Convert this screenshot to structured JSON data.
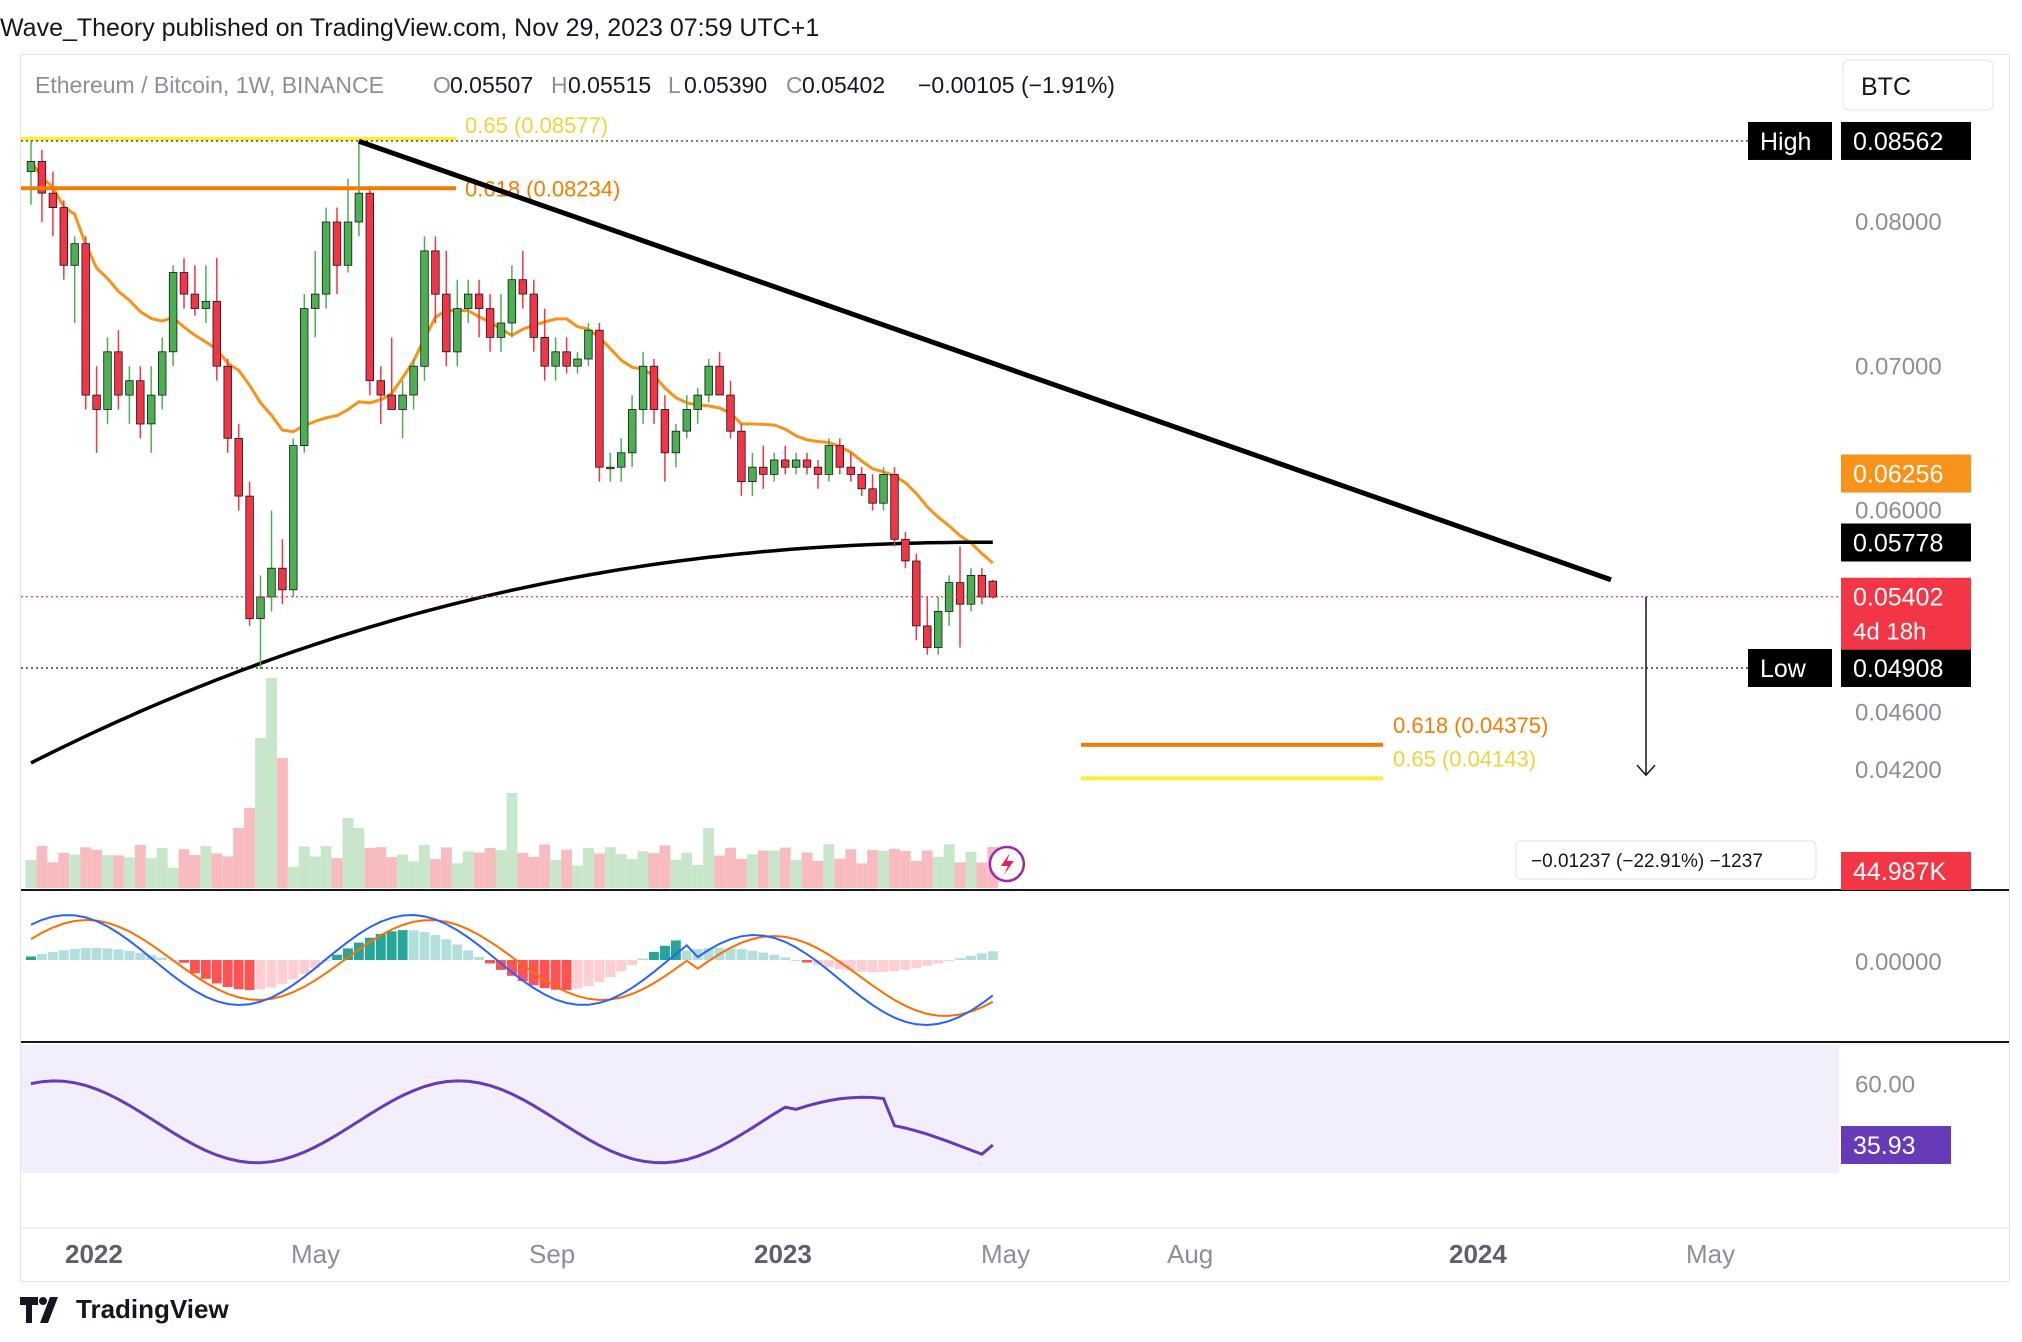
{
  "header": {
    "published": "Wave_Theory published on TradingView.com, Nov 29, 2023 07:59 UTC+1"
  },
  "legend": {
    "symbol": "Ethereum / Bitcoin, 1W, BINANCE",
    "o_label": "O",
    "o_value": "0.05507",
    "h_label": "H",
    "h_value": "0.05515",
    "l_label": "L",
    "l_value": "0.05390",
    "c_label": "C",
    "c_value": "0.05402",
    "change": "−0.00105 (−1.91%)"
  },
  "currency_button": "BTC",
  "price_scale": {
    "ticks": [
      "0.08000",
      "0.07000",
      "0.06000",
      "0.04600",
      "0.04200"
    ],
    "high_label": "High",
    "high_value": "0.08562",
    "low_label": "Low",
    "low_value": "0.04908",
    "ma50_value": "0.06256",
    "ma200_value": "0.05778",
    "last_value": "0.05402",
    "countdown": "4d 18h",
    "volume_value": "44.987K"
  },
  "fib_levels": {
    "top_065": "0.65 (0.08577)",
    "top_0618": "0.618 (0.08234)",
    "bottom_0618": "0.618 (0.04375)",
    "bottom_065": "0.65 (0.04143)"
  },
  "measure_label": "−0.01237 (−22.91%) −1237",
  "macd_scale": {
    "zero": "0.00000"
  },
  "rsi_scale": {
    "tick": "60.00",
    "value": "35.93"
  },
  "time_axis": [
    "2022",
    "May",
    "Sep",
    "2023",
    "May",
    "Aug",
    "2024",
    "May"
  ],
  "footer": {
    "brand": "TradingView"
  },
  "colors": {
    "up": "#4caf50",
    "down": "#f23645",
    "ma50": "#f7931a",
    "ma200": "#000000",
    "trendline": "#000000",
    "fib_gold": "#ffeb3b",
    "fib_orange": "#f57c00",
    "macd": "#2962ff",
    "signal": "#ff6d00",
    "rsi": "#673ab7",
    "rsi_bg": "#f3eefb"
  },
  "chart_data": {
    "type": "candlestick",
    "timeframe": "1W",
    "symbol": "ETHBTC",
    "candles_ohlc": [
      [
        0.0835,
        0.0856,
        0.0812,
        0.0842
      ],
      [
        0.0842,
        0.085,
        0.08,
        0.082
      ],
      [
        0.082,
        0.0835,
        0.079,
        0.081
      ],
      [
        0.081,
        0.0815,
        0.076,
        0.077
      ],
      [
        0.077,
        0.079,
        0.073,
        0.0785
      ],
      [
        0.0785,
        0.079,
        0.067,
        0.068
      ],
      [
        0.068,
        0.07,
        0.064,
        0.067
      ],
      [
        0.067,
        0.072,
        0.066,
        0.071
      ],
      [
        0.071,
        0.0725,
        0.067,
        0.068
      ],
      [
        0.068,
        0.07,
        0.066,
        0.069
      ],
      [
        0.069,
        0.07,
        0.065,
        0.066
      ],
      [
        0.066,
        0.07,
        0.064,
        0.068
      ],
      [
        0.068,
        0.072,
        0.067,
        0.071
      ],
      [
        0.071,
        0.077,
        0.07,
        0.0765
      ],
      [
        0.0765,
        0.0775,
        0.074,
        0.075
      ],
      [
        0.075,
        0.077,
        0.0735,
        0.074
      ],
      [
        0.074,
        0.077,
        0.073,
        0.0745
      ],
      [
        0.0745,
        0.0775,
        0.069,
        0.07
      ],
      [
        0.07,
        0.0705,
        0.064,
        0.065
      ],
      [
        0.065,
        0.066,
        0.06,
        0.061
      ],
      [
        0.061,
        0.062,
        0.052,
        0.0525
      ],
      [
        0.0525,
        0.0555,
        0.049,
        0.054
      ],
      [
        0.054,
        0.06,
        0.053,
        0.056
      ],
      [
        0.056,
        0.058,
        0.0535,
        0.0545
      ],
      [
        0.0545,
        0.065,
        0.054,
        0.0645
      ],
      [
        0.0645,
        0.075,
        0.064,
        0.074
      ],
      [
        0.074,
        0.078,
        0.072,
        0.075
      ],
      [
        0.075,
        0.081,
        0.074,
        0.08
      ],
      [
        0.08,
        0.081,
        0.075,
        0.077
      ],
      [
        0.077,
        0.083,
        0.0765,
        0.08
      ],
      [
        0.08,
        0.0856,
        0.079,
        0.082
      ],
      [
        0.082,
        0.0825,
        0.068,
        0.069
      ],
      [
        0.069,
        0.07,
        0.066,
        0.068
      ],
      [
        0.068,
        0.072,
        0.067,
        0.067
      ],
      [
        0.067,
        0.069,
        0.065,
        0.068
      ],
      [
        0.068,
        0.0705,
        0.067,
        0.07
      ],
      [
        0.07,
        0.079,
        0.069,
        0.078
      ],
      [
        0.078,
        0.079,
        0.073,
        0.075
      ],
      [
        0.075,
        0.078,
        0.07,
        0.071
      ],
      [
        0.071,
        0.076,
        0.07,
        0.074
      ],
      [
        0.074,
        0.076,
        0.073,
        0.075
      ],
      [
        0.075,
        0.076,
        0.072,
        0.074
      ],
      [
        0.074,
        0.075,
        0.071,
        0.072
      ],
      [
        0.072,
        0.075,
        0.071,
        0.073
      ],
      [
        0.073,
        0.077,
        0.072,
        0.076
      ],
      [
        0.076,
        0.078,
        0.074,
        0.075
      ],
      [
        0.075,
        0.076,
        0.071,
        0.072
      ],
      [
        0.072,
        0.074,
        0.069,
        0.07
      ],
      [
        0.07,
        0.072,
        0.069,
        0.071
      ],
      [
        0.071,
        0.072,
        0.0695,
        0.07
      ],
      [
        0.07,
        0.071,
        0.0695,
        0.0705
      ],
      [
        0.0705,
        0.073,
        0.07,
        0.0725
      ],
      [
        0.0725,
        0.073,
        0.062,
        0.063
      ],
      [
        0.063,
        0.064,
        0.062,
        0.063
      ],
      [
        0.063,
        0.065,
        0.062,
        0.064
      ],
      [
        0.064,
        0.068,
        0.063,
        0.067
      ],
      [
        0.067,
        0.071,
        0.066,
        0.07
      ],
      [
        0.07,
        0.0705,
        0.066,
        0.067
      ],
      [
        0.067,
        0.068,
        0.062,
        0.064
      ],
      [
        0.064,
        0.066,
        0.063,
        0.0655
      ],
      [
        0.0655,
        0.068,
        0.065,
        0.067
      ],
      [
        0.067,
        0.0685,
        0.066,
        0.068
      ],
      [
        0.068,
        0.0705,
        0.0675,
        0.07
      ],
      [
        0.07,
        0.071,
        0.068,
        0.068
      ],
      [
        0.068,
        0.069,
        0.065,
        0.0655
      ],
      [
        0.0655,
        0.066,
        0.061,
        0.062
      ],
      [
        0.062,
        0.064,
        0.061,
        0.063
      ],
      [
        0.063,
        0.0645,
        0.0615,
        0.0625
      ],
      [
        0.0625,
        0.064,
        0.062,
        0.0635
      ],
      [
        0.0635,
        0.0645,
        0.0625,
        0.063
      ],
      [
        0.063,
        0.064,
        0.0625,
        0.0635
      ],
      [
        0.0635,
        0.064,
        0.0625,
        0.063
      ],
      [
        0.063,
        0.0635,
        0.0615,
        0.0625
      ],
      [
        0.0625,
        0.065,
        0.062,
        0.0645
      ],
      [
        0.0645,
        0.065,
        0.0625,
        0.063
      ],
      [
        0.063,
        0.064,
        0.062,
        0.0625
      ],
      [
        0.0625,
        0.063,
        0.061,
        0.0615
      ],
      [
        0.0615,
        0.0625,
        0.06,
        0.0605
      ],
      [
        0.0605,
        0.063,
        0.06,
        0.0625
      ],
      [
        0.0625,
        0.063,
        0.0575,
        0.058
      ],
      [
        0.058,
        0.0585,
        0.056,
        0.0565
      ],
      [
        0.0565,
        0.057,
        0.051,
        0.052
      ],
      [
        0.052,
        0.054,
        0.05,
        0.0505
      ],
      [
        0.0505,
        0.054,
        0.05,
        0.053
      ],
      [
        0.053,
        0.0555,
        0.052,
        0.055
      ],
      [
        0.055,
        0.0575,
        0.0505,
        0.0535
      ],
      [
        0.0535,
        0.056,
        0.053,
        0.0555
      ],
      [
        0.0555,
        0.056,
        0.0535,
        0.054
      ],
      [
        0.0551,
        0.0552,
        0.0539,
        0.054
      ]
    ],
    "volume_scale_note": "last bar 44.987K",
    "ma50_last": 0.06256,
    "ma200_last": 0.05778,
    "price_range": [
      0.0375,
      0.0895
    ],
    "rsi_last": 35.93
  }
}
